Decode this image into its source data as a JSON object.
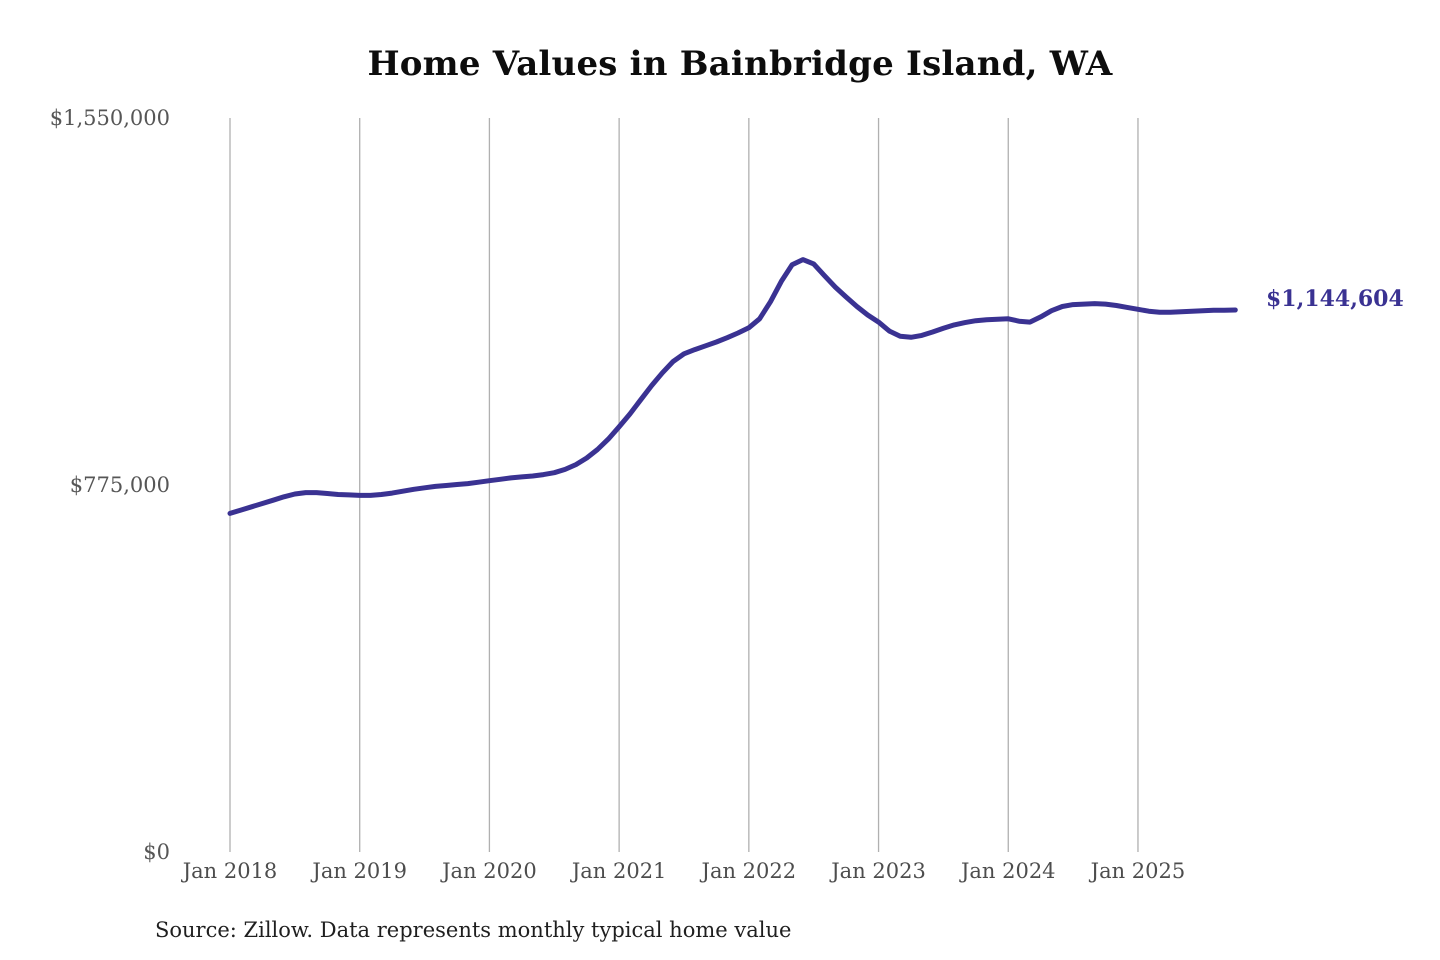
{
  "title": "Home Values in Bainbridge Island, WA",
  "source_note": "Source: Zillow. Data represents monthly typical home value",
  "colors": {
    "line": "#3a3292",
    "grid": "#b0b0b0",
    "axis_text": "#565656",
    "title_text": "#0d0d0d",
    "annotation_text": "#3a3292",
    "background": "#ffffff"
  },
  "chart_data": {
    "type": "line",
    "title": "Home Values in Bainbridge Island, WA",
    "x_tick_labels": [
      "Jan 2018",
      "Jan 2019",
      "Jan 2020",
      "Jan 2021",
      "Jan 2022",
      "Jan 2023",
      "Jan 2024",
      "Jan 2025"
    ],
    "y_ticks": [
      0,
      775000,
      1550000
    ],
    "y_tick_labels": [
      "$0",
      "$775,000",
      "$1,550,000"
    ],
    "ylim": [
      0,
      1550000
    ],
    "grid": "vertical-only",
    "legend": "none",
    "annotation": {
      "text": "$1,144,604",
      "position": "end-of-line"
    },
    "final_value": 1144604,
    "series": [
      {
        "name": "Monthly typical home value",
        "unit": "USD",
        "start_month": "Jan 2018",
        "monthly_values": [
          715000,
          722000,
          729000,
          736000,
          743000,
          750000,
          756000,
          759000,
          759000,
          757000,
          755000,
          754000,
          753000,
          753000,
          755000,
          758000,
          762000,
          766000,
          769000,
          772000,
          774000,
          776000,
          778000,
          781000,
          784000,
          787000,
          790000,
          792000,
          794000,
          797000,
          801000,
          808000,
          818000,
          832000,
          850000,
          872000,
          898000,
          925000,
          955000,
          985000,
          1012000,
          1036000,
          1052000,
          1061000,
          1069000,
          1077000,
          1086000,
          1096000,
          1107000,
          1126000,
          1162000,
          1205000,
          1240000,
          1251000,
          1242000,
          1217000,
          1193000,
          1172000,
          1152000,
          1134000,
          1119000,
          1100000,
          1089000,
          1087000,
          1091000,
          1098000,
          1106000,
          1113000,
          1118000,
          1122000,
          1124000,
          1125000,
          1126000,
          1121000,
          1119000,
          1130000,
          1143000,
          1152000,
          1156000,
          1157000,
          1158000,
          1157000,
          1154000,
          1150000,
          1146000,
          1142000,
          1140000,
          1140000,
          1141000,
          1142000,
          1143000,
          1144000,
          1144000,
          1144604
        ]
      }
    ]
  }
}
